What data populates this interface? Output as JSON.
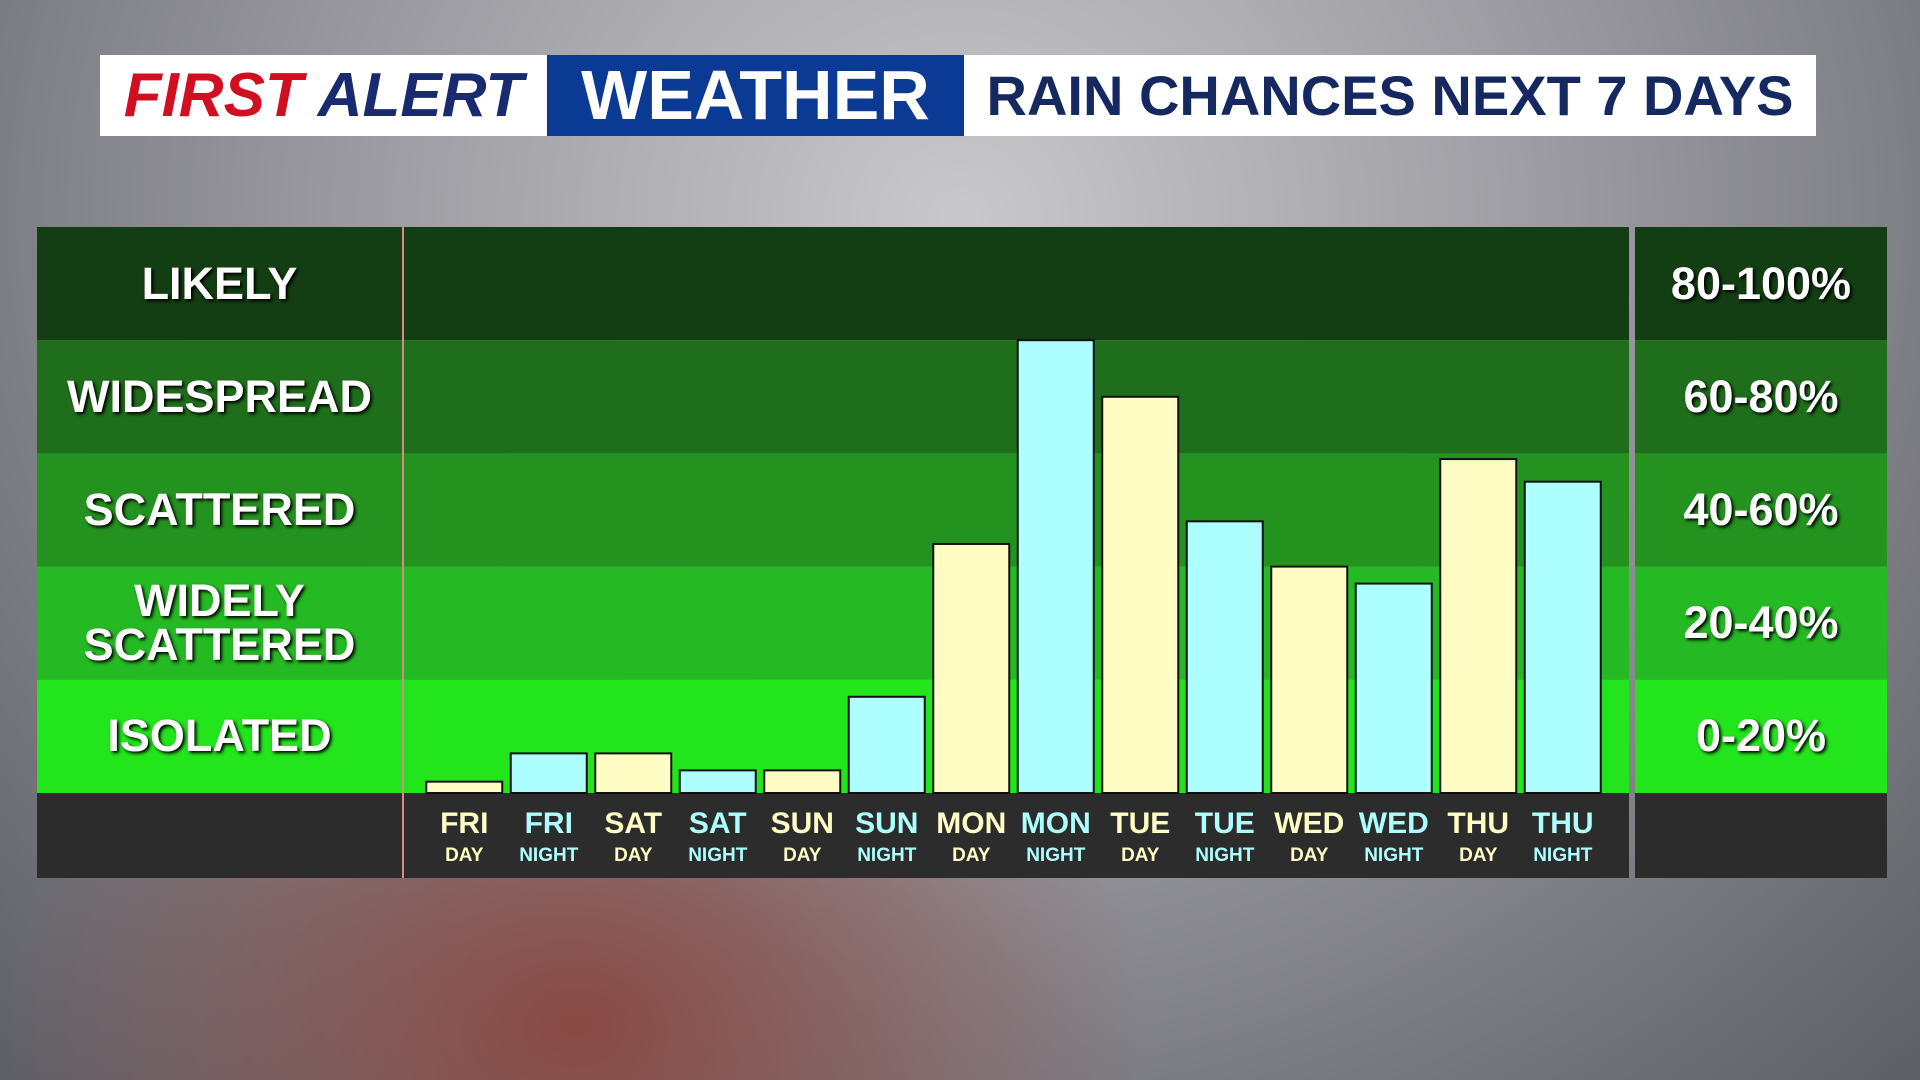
{
  "header": {
    "brand_first": "FIRST",
    "brand_second": "ALERT",
    "brand_third": "WEATHER"
  },
  "chart_data": {
    "type": "bar",
    "title": "RAIN CHANCES NEXT 7 DAYS",
    "categories": [
      [
        "FRI",
        "DAY"
      ],
      [
        "FRI",
        "NIGHT"
      ],
      [
        "SAT",
        "DAY"
      ],
      [
        "SAT",
        "NIGHT"
      ],
      [
        "SUN",
        "DAY"
      ],
      [
        "SUN",
        "NIGHT"
      ],
      [
        "MON",
        "DAY"
      ],
      [
        "MON",
        "NIGHT"
      ],
      [
        "TUE",
        "DAY"
      ],
      [
        "TUE",
        "NIGHT"
      ],
      [
        "WED",
        "DAY"
      ],
      [
        "WED",
        "NIGHT"
      ],
      [
        "THU",
        "DAY"
      ],
      [
        "THU",
        "NIGHT"
      ]
    ],
    "values": [
      2,
      7,
      7,
      4,
      4,
      17,
      44,
      80,
      70,
      48,
      40,
      37,
      59,
      55
    ],
    "colors": [
      "#fffdc4",
      "#adfeff",
      "#fffdc4",
      "#adfeff",
      "#fffdc4",
      "#adfeff",
      "#fffdc4",
      "#adfeff",
      "#fffdc4",
      "#adfeff",
      "#fffdc4",
      "#adfeff",
      "#fffdc4",
      "#adfeff"
    ],
    "ylim": [
      0,
      100
    ],
    "bands": [
      {
        "label": "LIKELY",
        "range": "80-100%",
        "from": 80,
        "to": 100,
        "color": "#133d12"
      },
      {
        "label": "WIDESPREAD",
        "range": "60-80%",
        "from": 60,
        "to": 80,
        "color": "#1f6e1c"
      },
      {
        "label": "SCATTERED",
        "range": "40-60%",
        "from": 40,
        "to": 60,
        "color": "#24921f"
      },
      {
        "label": "WIDELY SCATTERED",
        "range": "20-40%",
        "from": 20,
        "to": 40,
        "color": "#25b923"
      },
      {
        "label": "ISOLATED",
        "range": "0-20%",
        "from": 0,
        "to": 20,
        "color": "#22e51b"
      }
    ]
  }
}
